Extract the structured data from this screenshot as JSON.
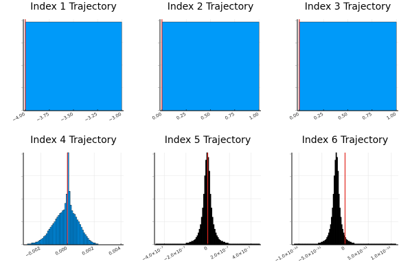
{
  "chart_data": [
    {
      "type": "bar",
      "title": "Index 1 Trajectory",
      "xlim": [
        -4.02,
        -2.98
      ],
      "xticks": [
        -4.0,
        -3.75,
        -3.5,
        -3.25,
        -3.0
      ],
      "xtick_labels": [
        "−4.00",
        "−3.75",
        "−3.50",
        "−3.25",
        "−3.00"
      ],
      "ylim": [
        0,
        1.0
      ],
      "grid": true,
      "bar_color": "#009af9",
      "bar_edge_color": "#000000",
      "bars": [
        {
          "x0": -4.0,
          "x1": -3.0,
          "value": 0.97
        }
      ],
      "vline": {
        "x": -4.0,
        "color": "#e0261e"
      }
    },
    {
      "type": "bar",
      "title": "Index 2 Trajectory",
      "xlim": [
        -0.02,
        1.02
      ],
      "xticks": [
        0.0,
        0.25,
        0.5,
        0.75,
        1.0
      ],
      "xtick_labels": [
        "0.00",
        "0.25",
        "0.50",
        "0.75",
        "1.00"
      ],
      "ylim": [
        0,
        1.0
      ],
      "grid": true,
      "bar_color": "#009af9",
      "bar_edge_color": "#000000",
      "bars": [
        {
          "x0": 0.0,
          "x1": 1.0,
          "value": 0.97
        }
      ],
      "vline": {
        "x": 0.0,
        "color": "#e0261e"
      }
    },
    {
      "type": "bar",
      "title": "Index 3 Trajectory",
      "xlim": [
        -0.02,
        1.02
      ],
      "xticks": [
        0.0,
        0.25,
        0.5,
        0.75,
        1.0
      ],
      "xtick_labels": [
        "0.00",
        "0.25",
        "0.50",
        "0.75",
        "1.00"
      ],
      "ylim": [
        0,
        1.0
      ],
      "grid": true,
      "bar_color": "#009af9",
      "bar_edge_color": "#000000",
      "bars": [
        {
          "x0": 0.0,
          "x1": 1.0,
          "value": 0.97
        }
      ],
      "vline": {
        "x": 0.0,
        "color": "#e0261e"
      }
    },
    {
      "type": "bar",
      "title": "Index 4 Trajectory",
      "xlim": [
        -0.0033,
        0.0042
      ],
      "xticks": [
        -0.002,
        0.0,
        0.002,
        0.004
      ],
      "xtick_labels": [
        "−0.002",
        "0.000",
        "0.002",
        "0.004"
      ],
      "ylim": [
        0,
        1.0
      ],
      "grid": true,
      "bar_color": "#009af9",
      "bar_edge_color": "#000000",
      "bin_start": -0.003,
      "bin_width": 0.0001,
      "values": [
        0.01,
        0.01,
        0.01,
        0.02,
        0.02,
        0.02,
        0.03,
        0.03,
        0.04,
        0.05,
        0.06,
        0.07,
        0.09,
        0.1,
        0.12,
        0.15,
        0.17,
        0.19,
        0.21,
        0.23,
        0.25,
        0.28,
        0.3,
        0.32,
        0.34,
        0.35,
        0.37,
        0.38,
        0.45,
        0.55,
        1.0,
        0.58,
        0.43,
        0.37,
        0.34,
        0.33,
        0.3,
        0.27,
        0.25,
        0.22,
        0.19,
        0.16,
        0.13,
        0.11,
        0.09,
        0.07,
        0.05,
        0.04,
        0.03,
        0.02,
        0.02,
        0.01,
        0.01
      ],
      "vline": {
        "x": 0.0,
        "color": "#e0261e"
      }
    },
    {
      "type": "bar",
      "title": "Index 5 Trajectory",
      "xlim": [
        -4.9e-07,
        4.9e-07
      ],
      "xticks": [
        -4e-07,
        -2e-07,
        0,
        2e-07,
        4e-07
      ],
      "xtick_labels": [
        "−4.0×10⁻⁷",
        "−2.0×10⁻⁷",
        "0",
        "2.0×10⁻⁷",
        "4.0×10⁻⁷"
      ],
      "ylim": [
        0,
        1.0
      ],
      "grid": true,
      "bar_color": "#000000",
      "bar_edge_color": "#000000",
      "bin_start": -4.8e-07,
      "bin_width": 1e-08,
      "values": [
        0.01,
        0.01,
        0.01,
        0.01,
        0.01,
        0.01,
        0.01,
        0.01,
        0.01,
        0.01,
        0.01,
        0.01,
        0.01,
        0.01,
        0.01,
        0.01,
        0.01,
        0.01,
        0.01,
        0.01,
        0.01,
        0.01,
        0.01,
        0.01,
        0.01,
        0.01,
        0.01,
        0.01,
        0.02,
        0.02,
        0.02,
        0.03,
        0.03,
        0.04,
        0.04,
        0.05,
        0.06,
        0.08,
        0.1,
        0.13,
        0.17,
        0.22,
        0.3,
        0.4,
        0.55,
        0.75,
        0.92,
        1.0,
        0.95,
        0.8,
        0.55,
        0.4,
        0.3,
        0.22,
        0.17,
        0.13,
        0.1,
        0.08,
        0.06,
        0.05,
        0.04,
        0.04,
        0.03,
        0.03,
        0.02,
        0.02,
        0.02,
        0.01,
        0.01,
        0.01,
        0.01,
        0.01,
        0.01,
        0.01,
        0.01,
        0.01,
        0.01,
        0.01,
        0.01,
        0.01,
        0.01,
        0.01,
        0.01,
        0.01,
        0.01,
        0.01,
        0.01,
        0.01,
        0.01,
        0.01,
        0.01,
        0.01,
        0.01,
        0.01,
        0.01,
        0.01
      ],
      "vline": {
        "x": 0,
        "color": "#e0261e"
      }
    },
    {
      "type": "bar",
      "title": "Index 6 Trajectory",
      "xlim": [
        -1.15e-10,
        1.15e-10
      ],
      "xticks": [
        -1e-10,
        -5e-11,
        0,
        5e-11,
        1e-10
      ],
      "xtick_labels": [
        "−1.0×10⁻¹⁰",
        "−5.0×10⁻¹¹",
        "0",
        "5.0×10⁻¹¹",
        "1.0×10⁻¹⁰"
      ],
      "ylim": [
        0,
        1.0
      ],
      "grid": true,
      "bar_color": "#000000",
      "bar_edge_color": "#000000",
      "bin_start": -1.1e-10,
      "bin_width": 2e-12,
      "values": [
        0.01,
        0.01,
        0.01,
        0.01,
        0.01,
        0.01,
        0.01,
        0.01,
        0.01,
        0.01,
        0.01,
        0.01,
        0.01,
        0.01,
        0.01,
        0.01,
        0.01,
        0.01,
        0.01,
        0.01,
        0.01,
        0.01,
        0.01,
        0.01,
        0.01,
        0.01,
        0.02,
        0.02,
        0.02,
        0.03,
        0.03,
        0.04,
        0.04,
        0.05,
        0.06,
        0.08,
        0.1,
        0.13,
        0.17,
        0.22,
        0.3,
        0.4,
        0.55,
        0.75,
        0.92,
        1.0,
        0.95,
        0.8,
        0.55,
        0.4,
        0.3,
        0.22,
        0.17,
        0.13,
        0.1,
        0.08,
        0.06,
        0.05,
        0.04,
        0.04,
        0.03,
        0.03,
        0.02,
        0.02,
        0.02,
        0.01,
        0.01,
        0.01,
        0.01,
        0.01,
        0.01,
        0.01,
        0.01,
        0.01,
        0.01,
        0.01,
        0.01,
        0.01,
        0.01,
        0.01,
        0.01,
        0.01,
        0.01,
        0.01,
        0.01,
        0.01,
        0.01,
        0.01,
        0.01,
        0.01,
        0.01,
        0.01,
        0.01,
        0.01,
        0.01,
        0.01,
        0.01,
        0.01,
        0.01,
        0.01,
        0.01,
        0.01,
        0.01,
        0.01,
        0.01,
        0.01,
        0.01,
        0.01,
        0.01,
        0.01
      ],
      "vline": {
        "x": 0,
        "color": "#e0261e"
      }
    }
  ]
}
